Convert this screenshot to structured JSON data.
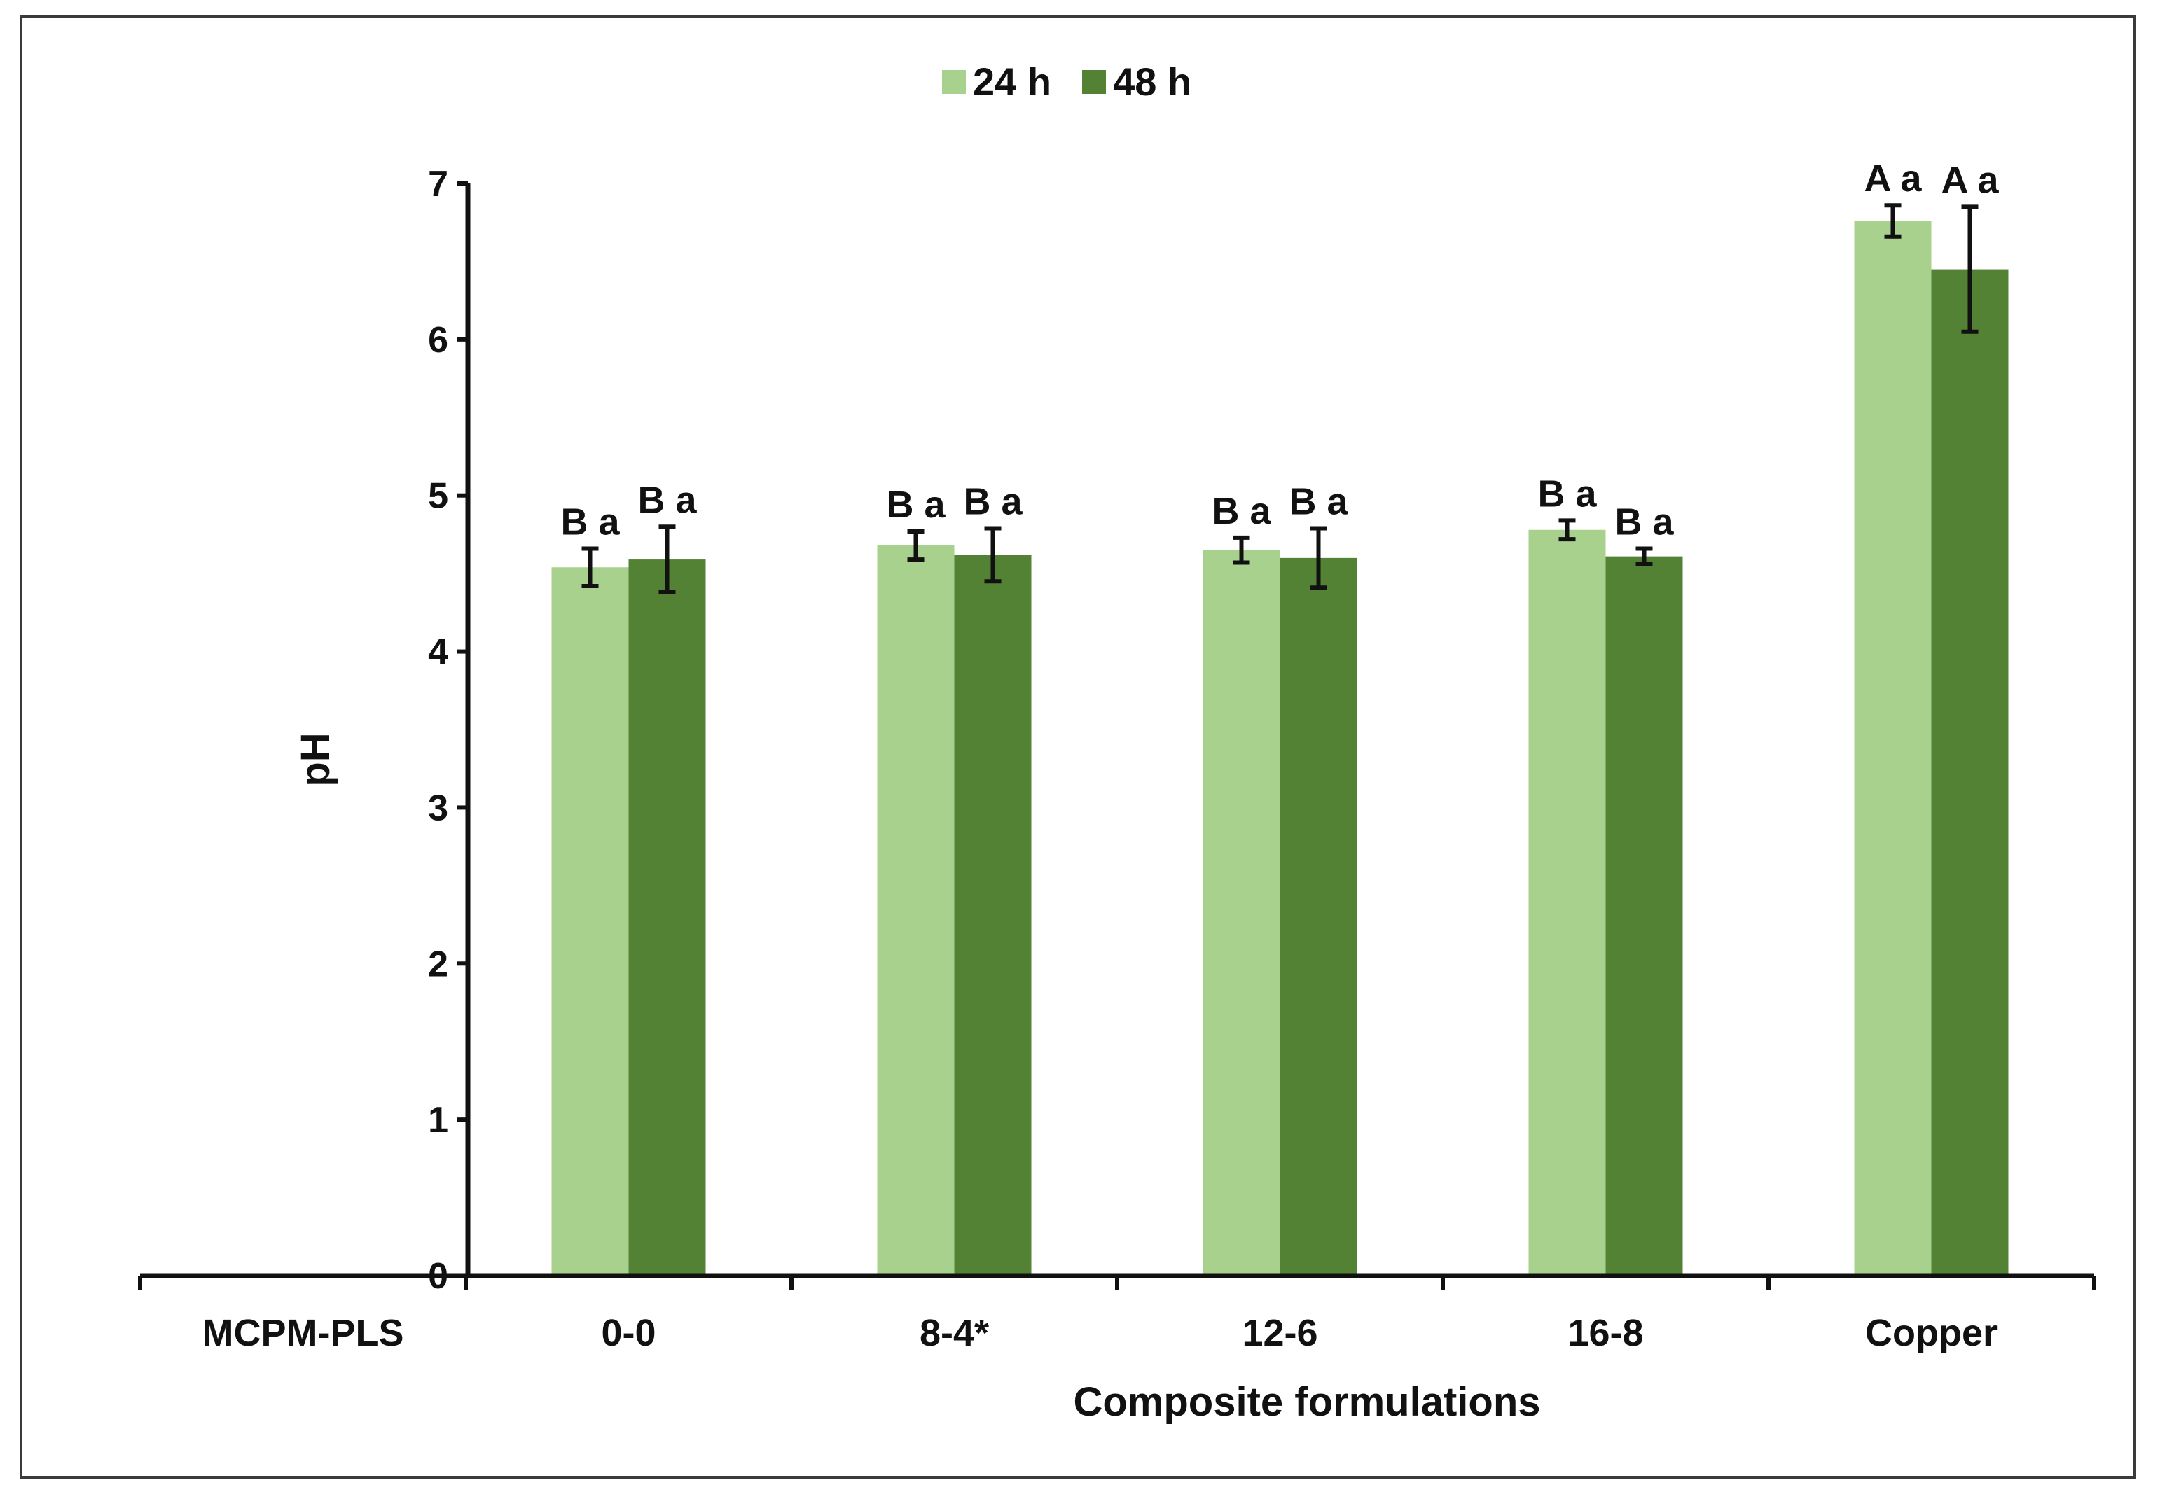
{
  "chart_data": {
    "type": "bar",
    "title": "",
    "xlabel": "Composite formulations",
    "ylabel": "pH",
    "ylim": [
      0,
      7
    ],
    "yticks": [
      "0",
      "1",
      "2",
      "3",
      "4",
      "5",
      "6",
      "7"
    ],
    "categories": [
      "MCPM-PLS",
      "0-0",
      "8-4*",
      "12-6",
      "16-8",
      "Copper"
    ],
    "series": [
      {
        "name": "24 h",
        "color": "#a9d18e",
        "values": [
          0,
          4.54,
          4.68,
          4.65,
          4.78,
          6.76
        ],
        "errors": [
          0,
          0.12,
          0.09,
          0.08,
          0.06,
          0.1
        ],
        "annotations": [
          "",
          "B a",
          "B a",
          "B a",
          "B a",
          "A a"
        ]
      },
      {
        "name": "48 h",
        "color": "#548235",
        "values": [
          0,
          4.59,
          4.62,
          4.6,
          4.61,
          6.45
        ],
        "errors": [
          0,
          0.21,
          0.17,
          0.19,
          0.05,
          0.4
        ],
        "annotations": [
          "",
          "B a",
          "B a",
          "B a",
          "B a",
          "A a"
        ]
      }
    ],
    "legend": "top-center",
    "grid": false
  }
}
